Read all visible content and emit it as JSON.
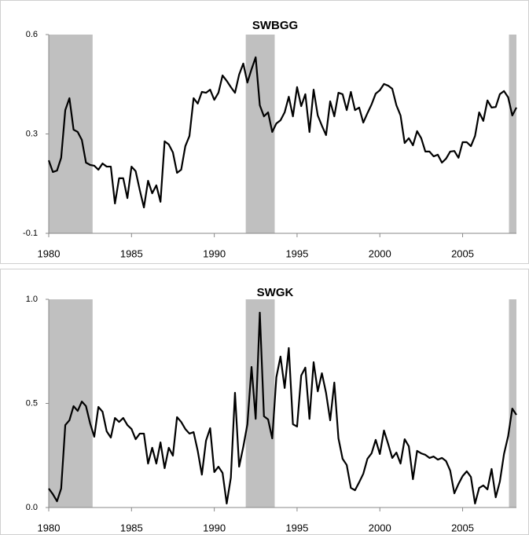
{
  "chart_data": [
    {
      "type": "line",
      "title": "SWBGG",
      "x": [
        1980,
        1980.25,
        1980.5,
        1980.75,
        1981,
        1981.25,
        1981.5,
        1981.75,
        1982,
        1982.25,
        1982.5,
        1982.75,
        1983,
        1983.25,
        1983.5,
        1983.75,
        1984,
        1984.25,
        1984.5,
        1984.75,
        1985,
        1985.25,
        1985.5,
        1985.75,
        1986,
        1986.25,
        1986.5,
        1986.75,
        1987,
        1987.25,
        1987.5,
        1987.75,
        1988,
        1988.25,
        1988.5,
        1988.75,
        1989,
        1989.25,
        1989.5,
        1989.75,
        1990,
        1990.25,
        1990.5,
        1990.75,
        1991,
        1991.25,
        1991.5,
        1991.75,
        1992,
        1992.25,
        1992.5,
        1992.75,
        1993,
        1993.25,
        1993.5,
        1993.75,
        1994,
        1994.25,
        1994.5,
        1994.75,
        1995,
        1995.25,
        1995.5,
        1995.75,
        1996,
        1996.25,
        1996.5,
        1996.75,
        1997,
        1997.25,
        1997.5,
        1997.75,
        1998,
        1998.25,
        1998.5,
        1998.75,
        1999,
        1999.25,
        1999.5,
        1999.75,
        2000,
        2000.25,
        2000.5,
        2000.75,
        2001,
        2001.25,
        2001.5,
        2001.75,
        2002,
        2002.25,
        2002.5,
        2002.75,
        2003,
        2003.25,
        2003.5,
        2003.75,
        2004,
        2004.25,
        2004.5,
        2004.75,
        2005,
        2005.25,
        2005.5,
        2005.75,
        2006,
        2006.25,
        2006.5,
        2006.75,
        2007,
        2007.25,
        2007.5,
        2007.75,
        2008,
        2008.25
      ],
      "series": [
        {
          "color": "#000000",
          "values": [
            0.157,
            0.116,
            0.121,
            0.166,
            0.334,
            0.376,
            0.265,
            0.257,
            0.229,
            0.149,
            0.141,
            0.138,
            0.124,
            0.146,
            0.135,
            0.135,
            0.005,
            0.094,
            0.094,
            0.024,
            0.135,
            0.119,
            0.052,
            -0.009,
            0.085,
            0.041,
            0.069,
            0.011,
            0.224,
            0.213,
            0.185,
            0.113,
            0.124,
            0.207,
            0.243,
            0.376,
            0.357,
            0.398,
            0.395,
            0.406,
            0.37,
            0.395,
            0.456,
            0.437,
            0.415,
            0.395,
            0.459,
            0.498,
            0.431,
            0.478,
            0.52,
            0.351,
            0.312,
            0.326,
            0.257,
            0.287,
            0.298,
            0.326,
            0.381,
            0.312,
            0.415,
            0.348,
            0.39,
            0.257,
            0.406,
            0.315,
            0.279,
            0.246,
            0.365,
            0.312,
            0.395,
            0.39,
            0.334,
            0.398,
            0.334,
            0.343,
            0.29,
            0.323,
            0.354,
            0.392,
            0.404,
            0.426,
            0.42,
            0.409,
            0.351,
            0.315,
            0.218,
            0.235,
            0.21,
            0.26,
            0.235,
            0.188,
            0.188,
            0.171,
            0.177,
            0.149,
            0.163,
            0.188,
            0.19,
            0.166,
            0.221,
            0.221,
            0.207,
            0.243,
            0.326,
            0.296,
            0.368,
            0.343,
            0.345,
            0.39,
            0.401,
            0.379,
            0.315,
            0.343
          ]
        }
      ],
      "xlim": [
        1980,
        2008.25
      ],
      "xticks": [
        1980,
        1985,
        1990,
        1995,
        2000,
        2005
      ],
      "ylim": [
        -0.1,
        0.6
      ],
      "yticks": [
        {
          "value": -0.1,
          "label": "-0.1"
        },
        {
          "value": 0.25,
          "label": "0.3"
        },
        {
          "value": 0.6,
          "label": "0.6"
        }
      ],
      "shaded_periods": [
        [
          1980,
          1982.65
        ],
        [
          1991.9,
          1993.65
        ],
        [
          2007.8,
          2008.25
        ]
      ],
      "shade_color": "#c0c0c0"
    },
    {
      "type": "line",
      "title": "SWGK",
      "x": [
        1980,
        1980.25,
        1980.5,
        1980.75,
        1981,
        1981.25,
        1981.5,
        1981.75,
        1982,
        1982.25,
        1982.5,
        1982.75,
        1983,
        1983.25,
        1983.5,
        1983.75,
        1984,
        1984.25,
        1984.5,
        1984.75,
        1985,
        1985.25,
        1985.5,
        1985.75,
        1986,
        1986.25,
        1986.5,
        1986.75,
        1987,
        1987.25,
        1987.5,
        1987.75,
        1988,
        1988.25,
        1988.5,
        1988.75,
        1989,
        1989.25,
        1989.5,
        1989.75,
        1990,
        1990.25,
        1990.5,
        1990.75,
        1991,
        1991.25,
        1991.5,
        1991.75,
        1992,
        1992.25,
        1992.5,
        1992.75,
        1993,
        1993.25,
        1993.5,
        1993.75,
        1994,
        1994.25,
        1994.5,
        1994.75,
        1995,
        1995.25,
        1995.5,
        1995.75,
        1996,
        1996.25,
        1996.5,
        1996.75,
        1997,
        1997.25,
        1997.5,
        1997.75,
        1998,
        1998.25,
        1998.5,
        1998.75,
        1999,
        1999.25,
        1999.5,
        1999.75,
        2000,
        2000.25,
        2000.5,
        2000.75,
        2001,
        2001.25,
        2001.5,
        2001.75,
        2002,
        2002.25,
        2002.5,
        2002.75,
        2003,
        2003.25,
        2003.5,
        2003.75,
        2004,
        2004.25,
        2004.5,
        2004.75,
        2005,
        2005.25,
        2005.5,
        2005.75,
        2006,
        2006.25,
        2006.5,
        2006.75,
        2007,
        2007.25,
        2007.5,
        2007.75,
        2008,
        2008.25
      ],
      "series": [
        {
          "color": "#000000",
          "values": [
            0.091,
            0.064,
            0.03,
            0.091,
            0.396,
            0.419,
            0.487,
            0.464,
            0.509,
            0.487,
            0.404,
            0.34,
            0.483,
            0.46,
            0.366,
            0.336,
            0.43,
            0.411,
            0.43,
            0.396,
            0.377,
            0.328,
            0.355,
            0.355,
            0.211,
            0.287,
            0.211,
            0.313,
            0.189,
            0.287,
            0.249,
            0.434,
            0.411,
            0.377,
            0.355,
            0.362,
            0.272,
            0.158,
            0.321,
            0.381,
            0.17,
            0.196,
            0.166,
            0.019,
            0.143,
            0.551,
            0.196,
            0.291,
            0.4,
            0.675,
            0.426,
            0.936,
            0.438,
            0.423,
            0.332,
            0.626,
            0.725,
            0.574,
            0.766,
            0.4,
            0.389,
            0.634,
            0.672,
            0.426,
            0.698,
            0.558,
            0.645,
            0.551,
            0.419,
            0.6,
            0.332,
            0.234,
            0.204,
            0.094,
            0.083,
            0.121,
            0.162,
            0.234,
            0.26,
            0.325,
            0.257,
            0.37,
            0.306,
            0.238,
            0.264,
            0.211,
            0.328,
            0.294,
            0.136,
            0.272,
            0.26,
            0.253,
            0.238,
            0.245,
            0.23,
            0.238,
            0.223,
            0.177,
            0.068,
            0.113,
            0.151,
            0.174,
            0.147,
            0.019,
            0.094,
            0.106,
            0.087,
            0.185,
            0.049,
            0.125,
            0.257,
            0.343,
            0.475,
            0.445
          ]
        }
      ],
      "xlim": [
        1980,
        2008.25
      ],
      "xticks": [
        1980,
        1985,
        1990,
        1995,
        2000,
        2005
      ],
      "ylim": [
        0,
        1
      ],
      "yticks": [
        {
          "value": 0,
          "label": "0.0"
        },
        {
          "value": 0.5,
          "label": "0.5"
        },
        {
          "value": 1,
          "label": "1.0"
        }
      ],
      "shaded_periods": [
        [
          1980,
          1982.65
        ],
        [
          1991.9,
          1993.65
        ],
        [
          2007.8,
          2008.25
        ]
      ],
      "shade_color": "#c0c0c0"
    }
  ]
}
